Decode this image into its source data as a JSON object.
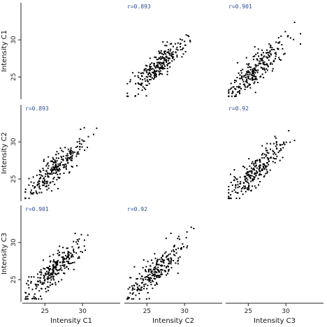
{
  "chart_data": {
    "type": "scatter",
    "layout": "scatter-matrix",
    "variables": [
      "Intensity C1",
      "Intensity C2",
      "Intensity C3"
    ],
    "axis_range": [
      22,
      35
    ],
    "ticks": [
      25,
      30
    ],
    "tick_labels": [
      "25",
      "30"
    ],
    "x_axis_labels": [
      "Intensity C1",
      "Intensity C2",
      "Intensity C3"
    ],
    "y_axis_labels": [
      "Intensity C1",
      "Intensity C2",
      "Intensity C3"
    ],
    "grid": false,
    "diagonal": "empty",
    "point_color": "#000000",
    "correlation_color": "#2b4f8f",
    "panels": [
      {
        "row": 0,
        "col": 1,
        "correlation_label": "r=0.893",
        "r": 0.893,
        "n": 260
      },
      {
        "row": 0,
        "col": 2,
        "correlation_label": "r=0.901",
        "r": 0.901,
        "n": 260
      },
      {
        "row": 1,
        "col": 0,
        "correlation_label": "r=0.893",
        "r": 0.893,
        "n": 260
      },
      {
        "row": 1,
        "col": 2,
        "correlation_label": "r=0.92",
        "r": 0.92,
        "n": 260
      },
      {
        "row": 2,
        "col": 0,
        "correlation_label": "r=0.901",
        "r": 0.901,
        "n": 260
      },
      {
        "row": 2,
        "col": 1,
        "correlation_label": "r=0.92",
        "r": 0.92,
        "n": 260
      }
    ]
  }
}
